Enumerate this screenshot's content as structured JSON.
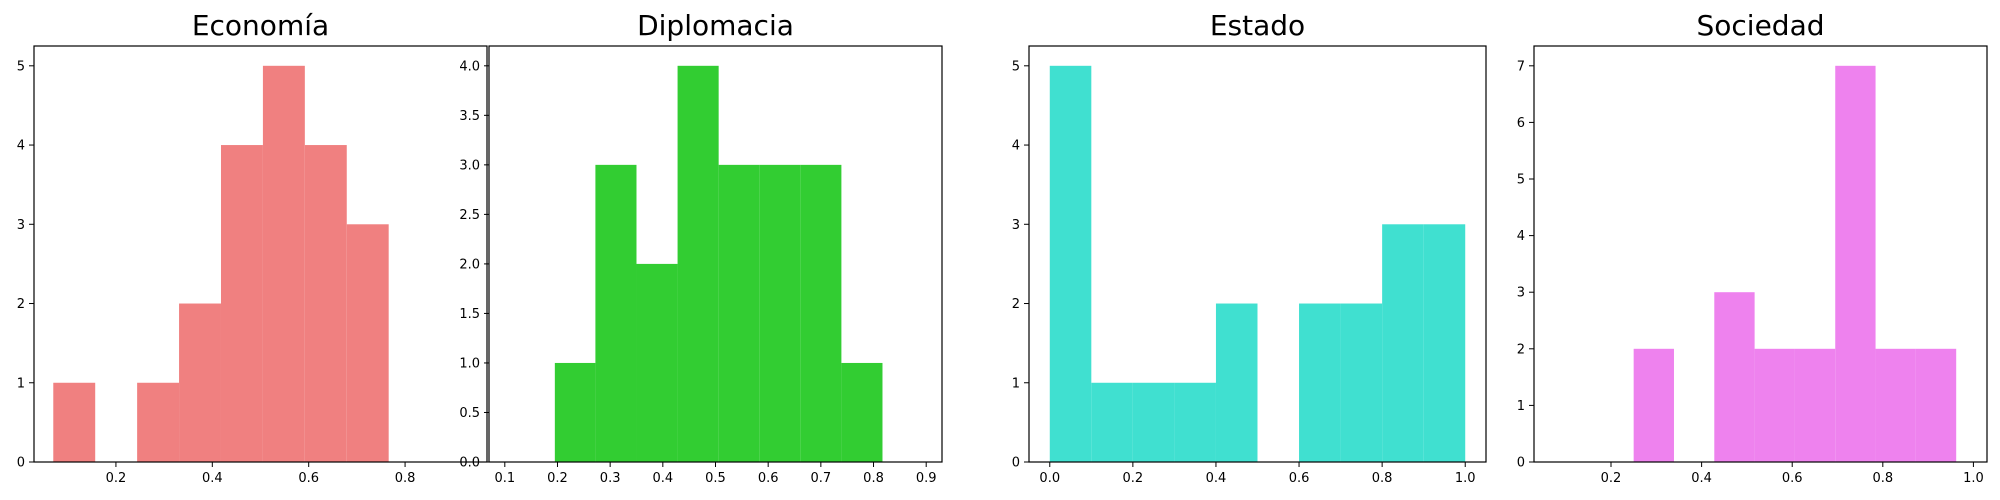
{
  "chart_data": [
    {
      "type": "bar",
      "title": "Economía",
      "color": "#f08080",
      "xlim": [
        0.03,
        0.97
      ],
      "ylim": [
        0,
        5.25
      ],
      "xticks": [
        "0.2",
        "0.4",
        "0.6",
        "0.8"
      ],
      "yticks": [
        "0",
        "1",
        "2",
        "3",
        "4",
        "5"
      ],
      "bins": [
        {
          "x0": 0.07,
          "x1": 0.157,
          "count": 1
        },
        {
          "x0": 0.157,
          "x1": 0.244,
          "count": 0
        },
        {
          "x0": 0.244,
          "x1": 0.331,
          "count": 1
        },
        {
          "x0": 0.331,
          "x1": 0.418,
          "count": 2
        },
        {
          "x0": 0.418,
          "x1": 0.505,
          "count": 4
        },
        {
          "x0": 0.505,
          "x1": 0.592,
          "count": 5
        },
        {
          "x0": 0.592,
          "x1": 0.679,
          "count": 4
        },
        {
          "x0": 0.679,
          "x1": 0.766,
          "count": 3
        }
      ]
    },
    {
      "type": "bar",
      "title": "Diplomacia",
      "color": "#32cd32",
      "xlim": [
        0.07,
        0.93
      ],
      "ylim": [
        0,
        4.2
      ],
      "xticks": [
        "0.1",
        "0.2",
        "0.3",
        "0.4",
        "0.5",
        "0.6",
        "0.7",
        "0.8",
        "0.9"
      ],
      "yticks": [
        "0.0",
        "0.5",
        "1.0",
        "1.5",
        "2.0",
        "2.5",
        "3.0",
        "3.5",
        "4.0"
      ],
      "bins": [
        {
          "x0": 0.195,
          "x1": 0.272,
          "count": 1
        },
        {
          "x0": 0.272,
          "x1": 0.35,
          "count": 3
        },
        {
          "x0": 0.35,
          "x1": 0.428,
          "count": 2
        },
        {
          "x0": 0.428,
          "x1": 0.506,
          "count": 4
        },
        {
          "x0": 0.506,
          "x1": 0.583,
          "count": 3
        },
        {
          "x0": 0.583,
          "x1": 0.661,
          "count": 3
        },
        {
          "x0": 0.661,
          "x1": 0.739,
          "count": 3
        },
        {
          "x0": 0.739,
          "x1": 0.817,
          "count": 1
        }
      ]
    },
    {
      "type": "bar",
      "title": "Estado",
      "color": "#40e0d0",
      "xlim": [
        -0.05,
        1.05
      ],
      "ylim": [
        0,
        5.25
      ],
      "xticks": [
        "0.0",
        "0.2",
        "0.4",
        "0.6",
        "0.8",
        "1.0"
      ],
      "yticks": [
        "0",
        "1",
        "2",
        "3",
        "4",
        "5"
      ],
      "bins": [
        {
          "x0": 0.0,
          "x1": 0.1,
          "count": 5
        },
        {
          "x0": 0.1,
          "x1": 0.2,
          "count": 1
        },
        {
          "x0": 0.2,
          "x1": 0.3,
          "count": 1
        },
        {
          "x0": 0.3,
          "x1": 0.4,
          "count": 1
        },
        {
          "x0": 0.4,
          "x1": 0.5,
          "count": 2
        },
        {
          "x0": 0.5,
          "x1": 0.6,
          "count": 0
        },
        {
          "x0": 0.6,
          "x1": 0.7,
          "count": 2
        },
        {
          "x0": 0.7,
          "x1": 0.8,
          "count": 2
        },
        {
          "x0": 0.8,
          "x1": 0.9,
          "count": 3
        },
        {
          "x0": 0.9,
          "x1": 1.0,
          "count": 3
        }
      ]
    },
    {
      "type": "bar",
      "title": "Sociedad",
      "color": "#ee82ee",
      "xlim": [
        0.03,
        1.03
      ],
      "ylim": [
        0,
        7.35
      ],
      "xticks": [
        "0.2",
        "0.4",
        "0.6",
        "0.8",
        "1.0"
      ],
      "yticks": [
        "0",
        "1",
        "2",
        "3",
        "4",
        "5",
        "6",
        "7"
      ],
      "bins": [
        {
          "x0": 0.25,
          "x1": 0.339,
          "count": 2
        },
        {
          "x0": 0.339,
          "x1": 0.428,
          "count": 0
        },
        {
          "x0": 0.428,
          "x1": 0.517,
          "count": 3
        },
        {
          "x0": 0.517,
          "x1": 0.606,
          "count": 2
        },
        {
          "x0": 0.606,
          "x1": 0.695,
          "count": 2
        },
        {
          "x0": 0.695,
          "x1": 0.784,
          "count": 7
        },
        {
          "x0": 0.784,
          "x1": 0.873,
          "count": 2
        },
        {
          "x0": 0.873,
          "x1": 0.962,
          "count": 2
        }
      ]
    }
  ]
}
